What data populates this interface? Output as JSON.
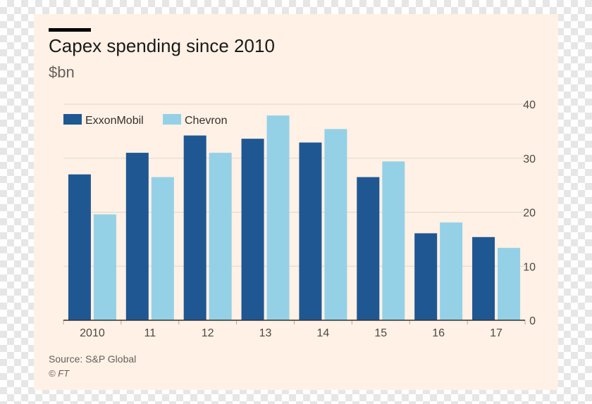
{
  "chart_data": {
    "type": "bar",
    "title": "Capex spending since 2010",
    "ylabel": "$bn",
    "categories": [
      "2010",
      "11",
      "12",
      "13",
      "14",
      "15",
      "16",
      "17"
    ],
    "series": [
      {
        "name": "ExxonMobil",
        "color": "#1f5793",
        "values": [
          27,
          31,
          34.2,
          33.6,
          32.9,
          26.5,
          16.1,
          15.4
        ]
      },
      {
        "name": "Chevron",
        "color": "#95d1e6",
        "values": [
          19.6,
          26.5,
          31,
          37.9,
          35.4,
          29.4,
          18.1,
          13.4
        ]
      }
    ],
    "yticks": [
      0,
      10,
      20,
      30,
      40
    ],
    "ylim": [
      0,
      40
    ],
    "grid": true,
    "legend": "top-left"
  },
  "footer": {
    "source": "Source: S&P Global",
    "credit": "© FT"
  }
}
